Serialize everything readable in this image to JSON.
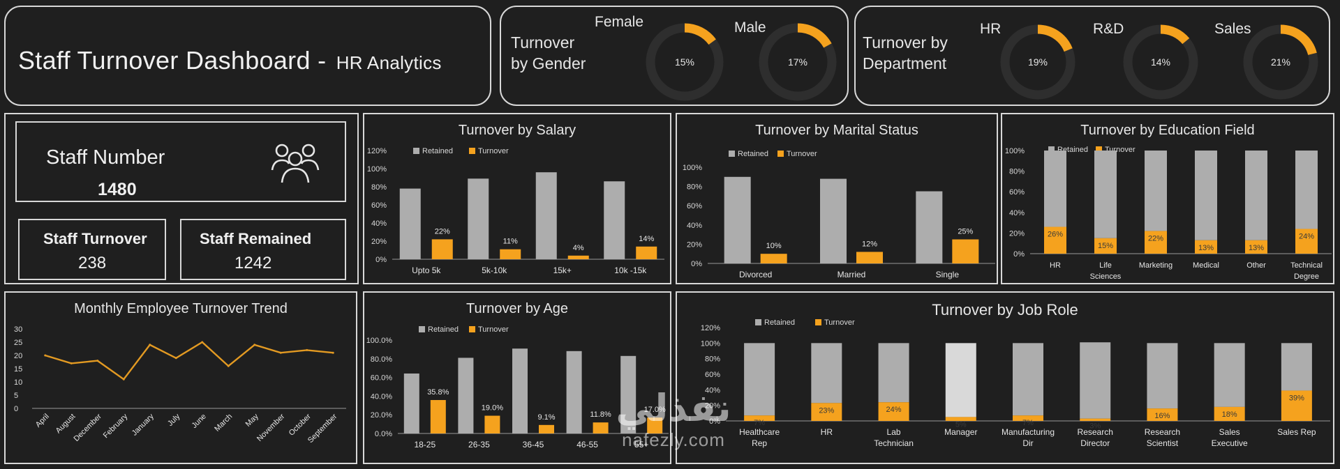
{
  "header": {
    "title": "Staff Turnover Dashboard",
    "dash": " - ",
    "subtitle": "HR Analytics"
  },
  "gender": {
    "title_line1": "Turnover",
    "title_line2": "by Gender",
    "items": [
      {
        "label": "Female",
        "value": 15,
        "text": "15%"
      },
      {
        "label": "Male",
        "value": 17,
        "text": "17%"
      }
    ]
  },
  "department": {
    "title_line1": "Turnover by",
    "title_line2": "Department",
    "items": [
      {
        "label": "HR",
        "value": 19,
        "text": "19%"
      },
      {
        "label": "R&D",
        "value": 14,
        "text": "14%"
      },
      {
        "label": "Sales",
        "value": 21,
        "text": "21%"
      }
    ]
  },
  "kpis": {
    "staff_number_label": "Staff Number",
    "staff_number": "1480",
    "staff_turnover_label": "Staff Turnover",
    "staff_turnover": "238",
    "staff_remained_label": "Staff Remained",
    "staff_remained": "1242",
    "people_icon": "people-group-icon"
  },
  "colors": {
    "retained": "#adadad",
    "turnover": "#f5a21e",
    "track": "#2e2e2e",
    "line": "#e39a22",
    "background": "#1f1f1f"
  },
  "chart_data": [
    {
      "id": "salary",
      "type": "bar",
      "title": "Turnover by Salary",
      "categories": [
        "Upto 5k",
        "5k-10k",
        "15k+",
        "10k -15k"
      ],
      "series": [
        {
          "name": "Retained",
          "values": [
            78,
            89,
            96,
            86
          ]
        },
        {
          "name": "Turnover",
          "values": [
            22,
            11,
            4,
            14
          ],
          "labels": [
            "22%",
            "11%",
            "4%",
            "14%"
          ]
        }
      ],
      "yticks": [
        "0%",
        "20%",
        "40%",
        "60%",
        "80%",
        "100%",
        "120%"
      ],
      "ylim": [
        0,
        120
      ]
    },
    {
      "id": "marital",
      "type": "bar",
      "title": "Turnover by Marital Status",
      "categories": [
        "Divorced",
        "Married",
        "Single"
      ],
      "series": [
        {
          "name": "Retained",
          "values": [
            90,
            88,
            75
          ]
        },
        {
          "name": "Turnover",
          "values": [
            10,
            12,
            25
          ],
          "labels": [
            "10%",
            "12%",
            "25%"
          ]
        }
      ],
      "yticks": [
        "0%",
        "20%",
        "40%",
        "60%",
        "80%",
        "100%"
      ],
      "ylim": [
        0,
        100
      ]
    },
    {
      "id": "education",
      "type": "bar",
      "stacked": true,
      "title": "Turnover by Education Field",
      "categories": [
        "HR",
        "Life Sciences",
        "Marketing",
        "Medical",
        "Other",
        "Technical Degree"
      ],
      "series": [
        {
          "name": "Retained",
          "values": [
            74,
            85,
            78,
            87,
            87,
            76
          ]
        },
        {
          "name": "Turnover",
          "values": [
            26,
            15,
            22,
            13,
            13,
            24
          ],
          "labels": [
            "26%",
            "15%",
            "22%",
            "13%",
            "13%",
            "24%"
          ]
        }
      ],
      "yticks": [
        "0%",
        "20%",
        "40%",
        "60%",
        "80%",
        "100%"
      ],
      "ylim": [
        0,
        100
      ]
    },
    {
      "id": "monthly",
      "type": "line",
      "title": "Monthly Employee Turnover Trend",
      "categories": [
        "April",
        "August",
        "December",
        "February",
        "January",
        "July",
        "June",
        "March",
        "May",
        "November",
        "October",
        "September"
      ],
      "values": [
        20,
        17,
        18,
        11,
        24,
        19,
        25,
        16,
        24,
        21,
        22,
        21
      ],
      "yticks": [
        "0",
        "5",
        "10",
        "15",
        "20",
        "25",
        "30"
      ],
      "ylim": [
        0,
        30
      ]
    },
    {
      "id": "age",
      "type": "bar",
      "title": "Turnover by Age",
      "categories": [
        "18-25",
        "26-35",
        "36-45",
        "46-55",
        "55+"
      ],
      "series": [
        {
          "name": "Retained",
          "values": [
            64.2,
            81,
            90.9,
            88.2,
            83
          ]
        },
        {
          "name": "Turnover",
          "values": [
            35.8,
            19.0,
            9.1,
            11.8,
            17.0
          ],
          "labels": [
            "35.8%",
            "19.0%",
            "9.1%",
            "11.8%",
            "17.0%"
          ]
        }
      ],
      "yticks": [
        "0.0%",
        "20.0%",
        "40.0%",
        "60.0%",
        "80.0%",
        "100.0%"
      ],
      "ylim": [
        0,
        100
      ]
    },
    {
      "id": "jobrole",
      "type": "bar",
      "stacked": true,
      "title": "Turnover by Job Role",
      "categories": [
        "Healthcare Rep",
        "HR",
        "Lab Technician",
        "Manager",
        "Manufacturing Dir",
        "Research Director",
        "Research Scientist",
        "Sales Executive",
        "Sales Rep"
      ],
      "series": [
        {
          "name": "Retained",
          "values": [
            93,
            77,
            76,
            95,
            93,
            98,
            84,
            82,
            61
          ]
        },
        {
          "name": "Turnover",
          "values": [
            7,
            23,
            24,
            5,
            7,
            3,
            16,
            18,
            39
          ],
          "labels": [
            "7%",
            "23%",
            "24%",
            "5%",
            "7%",
            "3%",
            "16%",
            "18%",
            "39%"
          ]
        }
      ],
      "yticks": [
        "0%",
        "20%",
        "40%",
        "60%",
        "80%",
        "100%",
        "120%"
      ],
      "ylim": [
        0,
        120
      ]
    }
  ],
  "watermark": {
    "arabic": "نفذلي",
    "latin": "nafezly.com"
  }
}
